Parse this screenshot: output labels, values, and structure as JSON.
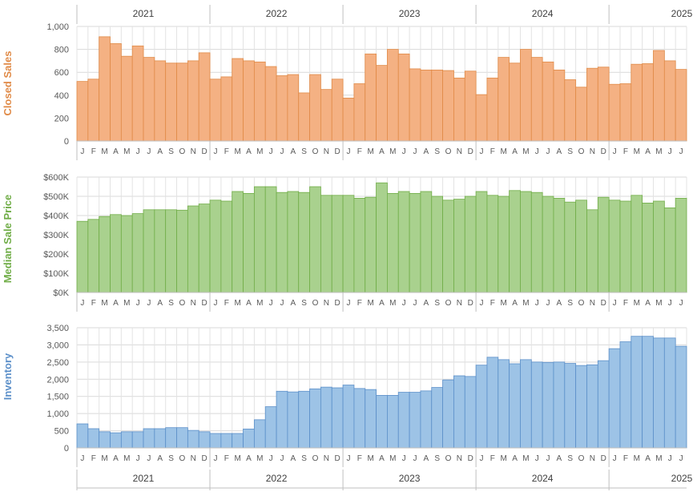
{
  "chart_data": [
    {
      "type": "bar",
      "ylabel": "Closed Sales",
      "color": "#F4B183",
      "stroke": "#E08A47",
      "label_color": "#E08A47",
      "ylim": [
        0,
        1000
      ],
      "yticks": [
        "0",
        "200",
        "400",
        "600",
        "800",
        "1,000"
      ],
      "ytick_values": [
        0,
        200,
        400,
        600,
        800,
        1000
      ],
      "values": [
        520,
        540,
        910,
        850,
        740,
        830,
        730,
        700,
        680,
        680,
        700,
        770,
        540,
        560,
        720,
        700,
        690,
        650,
        570,
        580,
        420,
        580,
        450,
        540,
        375,
        500,
        760,
        660,
        800,
        760,
        630,
        620,
        620,
        615,
        550,
        610,
        405,
        550,
        730,
        680,
        800,
        730,
        690,
        620,
        535,
        470,
        635,
        645,
        495,
        500,
        670,
        675,
        790,
        700,
        625
      ]
    },
    {
      "type": "bar",
      "ylabel": "Median Sale Price",
      "color": "#A9D18E",
      "stroke": "#70AD47",
      "label_color": "#70AD47",
      "ylim": [
        0,
        600000
      ],
      "yticks": [
        "$0K",
        "$100K",
        "$200K",
        "$300K",
        "$400K",
        "$500K",
        "$600K"
      ],
      "ytick_values": [
        0,
        100000,
        200000,
        300000,
        400000,
        500000,
        600000
      ],
      "values": [
        370000,
        380000,
        395000,
        405000,
        400000,
        410000,
        430000,
        430000,
        430000,
        428000,
        450000,
        460000,
        480000,
        475000,
        525000,
        515000,
        550000,
        550000,
        520000,
        525000,
        520000,
        550000,
        505000,
        505000,
        505000,
        490000,
        495000,
        570000,
        515000,
        525000,
        515000,
        525000,
        500000,
        480000,
        485000,
        500000,
        525000,
        505000,
        500000,
        530000,
        525000,
        520000,
        500000,
        490000,
        470000,
        480000,
        430000,
        495000,
        480000,
        475000,
        505000,
        465000,
        475000,
        440000,
        490000
      ]
    },
    {
      "type": "bar",
      "ylabel": "Inventory",
      "color": "#9DC3E6",
      "stroke": "#5B8FC9",
      "label_color": "#5B8FC9",
      "ylim": [
        0,
        3500
      ],
      "yticks": [
        "0",
        "500",
        "1,000",
        "1,500",
        "2,000",
        "2,500",
        "3,000",
        "3,500"
      ],
      "ytick_values": [
        0,
        500,
        1000,
        1500,
        2000,
        2500,
        3000,
        3500
      ],
      "values": [
        700,
        560,
        470,
        440,
        470,
        470,
        560,
        560,
        590,
        590,
        510,
        470,
        420,
        420,
        420,
        550,
        820,
        1200,
        1650,
        1630,
        1650,
        1720,
        1770,
        1750,
        1830,
        1730,
        1700,
        1530,
        1530,
        1620,
        1620,
        1660,
        1760,
        1980,
        2100,
        2080,
        2410,
        2640,
        2570,
        2450,
        2570,
        2500,
        2490,
        2500,
        2460,
        2400,
        2420,
        2540,
        2890,
        3090,
        3250,
        3250,
        3200,
        3200,
        2960
      ]
    }
  ],
  "month_labels": [
    "J",
    "F",
    "M",
    "A",
    "M",
    "J",
    "J",
    "A",
    "S",
    "O",
    "N",
    "D"
  ],
  "years": [
    "2021",
    "2022",
    "2023",
    "2024",
    "2025"
  ]
}
